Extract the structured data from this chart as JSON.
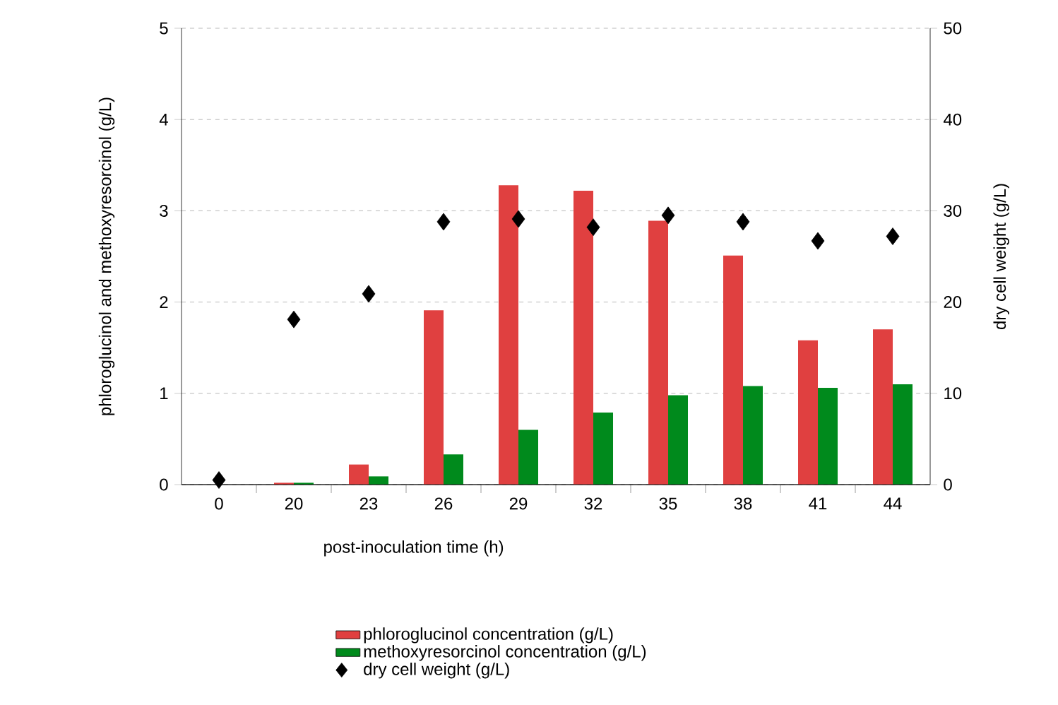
{
  "chart_data": {
    "type": "bar",
    "xlabel": "post-inoculation time (h)",
    "ylabel": "phloroglucinol and methoxyresorcinol (g/L)",
    "y2label": "dry cell weight (g/L)",
    "categories": [
      "0",
      "20",
      "23",
      "26",
      "29",
      "32",
      "35",
      "38",
      "41",
      "44"
    ],
    "series": [
      {
        "name": "phloroglucinol concentration (g/L)",
        "type": "bar",
        "color": "#e04040",
        "values": [
          0,
          0.02,
          0.22,
          1.91,
          3.28,
          3.22,
          2.89,
          2.51,
          1.58,
          1.7
        ]
      },
      {
        "name": "methoxyresorcinol concentration (g/L)",
        "type": "bar",
        "color": "#008a1c",
        "values": [
          0,
          0.02,
          0.09,
          0.33,
          0.6,
          0.79,
          0.98,
          1.08,
          1.06,
          1.1
        ]
      },
      {
        "name": "dry cell weight (g/L)",
        "type": "scatter",
        "axis": "y2",
        "marker": "diamond",
        "color": "#000000",
        "values": [
          0.5,
          18.1,
          20.9,
          28.8,
          29.1,
          28.2,
          29.5,
          28.8,
          26.7,
          27.2
        ]
      }
    ],
    "ylim": [
      0,
      5
    ],
    "yticks": [
      0,
      1,
      2,
      3,
      4,
      5
    ],
    "y2lim": [
      0,
      50
    ],
    "y2ticks": [
      0,
      10,
      20,
      30,
      40,
      50
    ],
    "grid": "y",
    "legend": "bottom"
  }
}
